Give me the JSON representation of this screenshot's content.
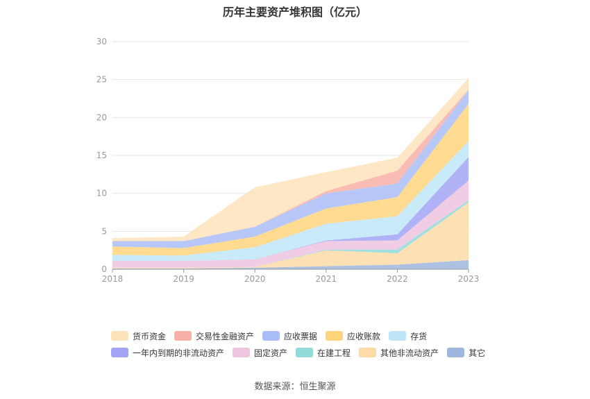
{
  "chart_data": {
    "type": "area",
    "stacked": true,
    "title": "历年主要资产堆积图（亿元）",
    "x": [
      "2018",
      "2019",
      "2020",
      "2021",
      "2022",
      "2023"
    ],
    "ylim": [
      0,
      30
    ],
    "yticks": [
      0,
      5,
      10,
      15,
      20,
      25,
      30
    ],
    "grid": true,
    "legend_position": "bottom",
    "series": [
      {
        "name": "其它",
        "color": "#9fb6de",
        "values": [
          0.1,
          0.1,
          0.2,
          0.4,
          0.6,
          1.2
        ]
      },
      {
        "name": "其他非流动资产",
        "color": "#fddba6",
        "values": [
          0.1,
          0.1,
          0.1,
          2.1,
          1.5,
          7.6
        ]
      },
      {
        "name": "在建工程",
        "color": "#92dbd9",
        "values": [
          0.0,
          0.0,
          0.0,
          0.1,
          0.5,
          0.3
        ]
      },
      {
        "name": "固定资产",
        "color": "#efc4e0",
        "values": [
          0.9,
          0.9,
          1.0,
          1.1,
          1.2,
          2.6
        ]
      },
      {
        "name": "一年内到期的非流动资产",
        "color": "#a3a3f4",
        "values": [
          0.0,
          0.0,
          0.0,
          0.1,
          0.8,
          3.1
        ]
      },
      {
        "name": "存货",
        "color": "#bfe6f8",
        "values": [
          0.8,
          0.7,
          1.6,
          2.2,
          2.4,
          2.1
        ]
      },
      {
        "name": "应收账款",
        "color": "#fed57c",
        "values": [
          1.1,
          1.0,
          1.4,
          2.0,
          2.5,
          4.9
        ]
      },
      {
        "name": "应收票据",
        "color": "#a9bdf7",
        "values": [
          0.7,
          0.9,
          1.3,
          2.0,
          1.8,
          1.8
        ]
      },
      {
        "name": "交易性金融资产",
        "color": "#f8b0a8",
        "values": [
          0.0,
          0.0,
          0.0,
          0.3,
          1.7,
          0.1
        ]
      },
      {
        "name": "货币资金",
        "color": "#fde3ba",
        "values": [
          0.4,
          0.6,
          5.2,
          2.5,
          1.7,
          1.5
        ]
      }
    ],
    "legend_rows": [
      [
        "货币资金",
        "交易性金融资产",
        "应收票据",
        "应收账款",
        "存货"
      ],
      [
        "一年内到期的非流动资产",
        "固定资产",
        "在建工程",
        "其他非流动资产",
        "其它"
      ]
    ]
  },
  "source_label": "数据来源：恒生聚源"
}
